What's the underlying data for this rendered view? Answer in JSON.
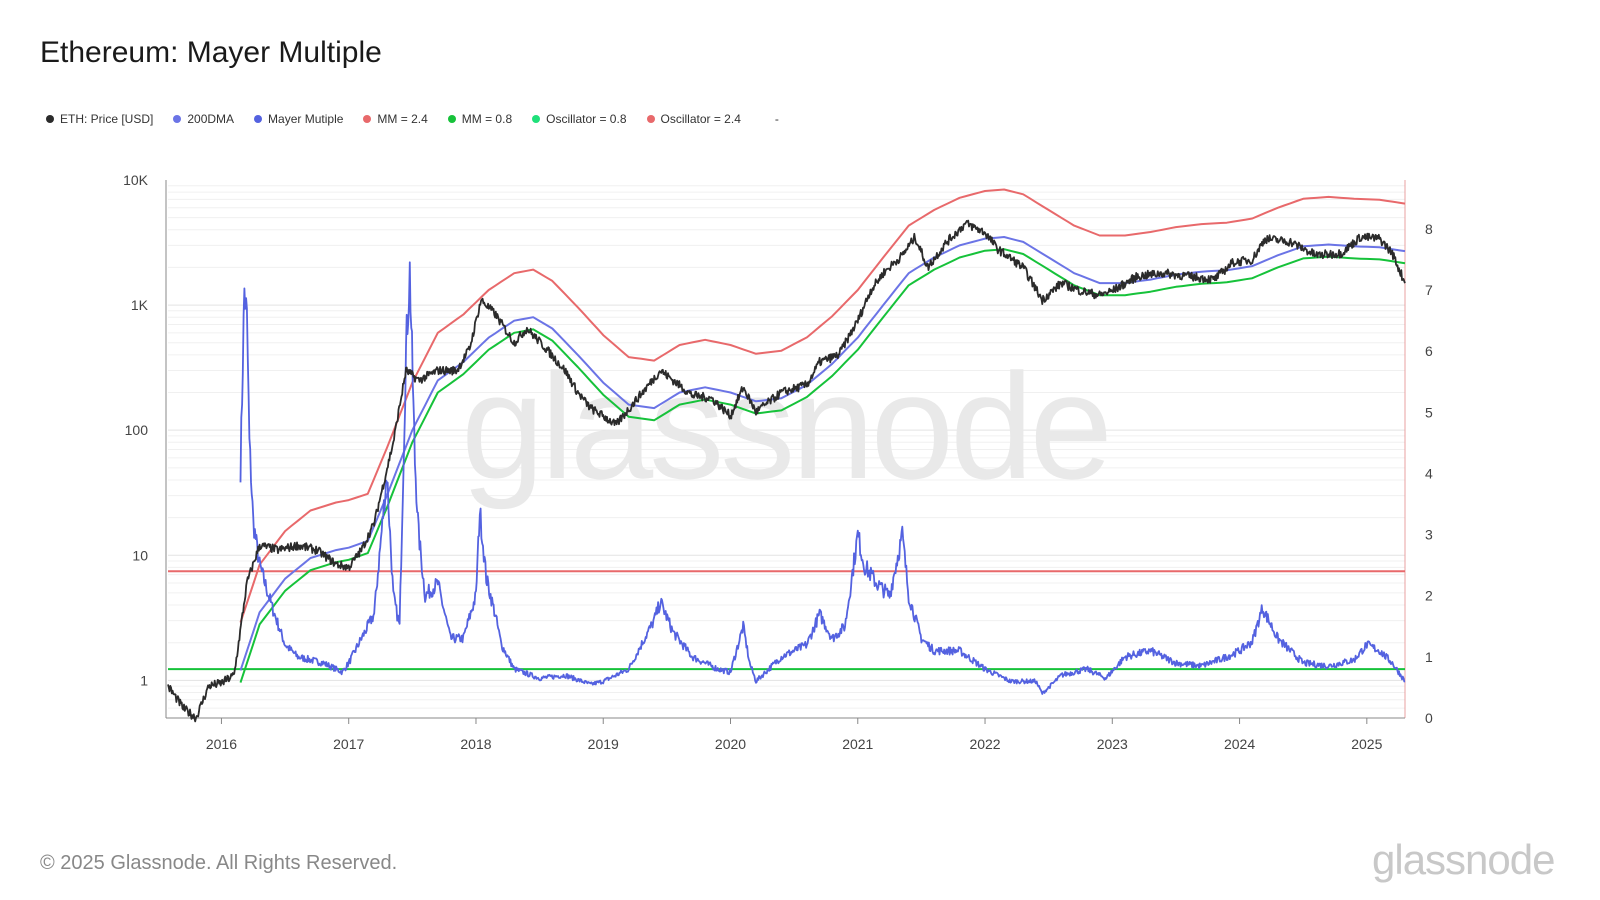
{
  "title": "Ethereum: Mayer Multiple",
  "footer": "© 2025 Glassnode. All Rights Reserved.",
  "brand": "glassnode",
  "watermark": "glassnode",
  "legend": [
    {
      "label": "ETH: Price [USD]",
      "color": "#2b2b2b"
    },
    {
      "label": "200DMA",
      "color": "#6b74e6"
    },
    {
      "label": "Mayer Mutiple",
      "color": "#5462e0"
    },
    {
      "label": "MM = 2.4",
      "color": "#e8696b"
    },
    {
      "label": "MM = 0.8",
      "color": "#16c23a"
    },
    {
      "label": "Oscillator = 0.8",
      "color": "#1fe07a"
    },
    {
      "label": "Oscillator = 2.4",
      "color": "#e8696b"
    },
    {
      "label": "-",
      "color": ""
    }
  ],
  "chart_data": {
    "type": "line",
    "y_left": {
      "scale": "log",
      "range": [
        0.5,
        10000
      ],
      "ticks": [
        "10K",
        "1K",
        "100",
        "10",
        "1"
      ],
      "tick_values": [
        10000,
        1000,
        100,
        10,
        1
      ]
    },
    "y_right": {
      "scale": "linear",
      "range": [
        0,
        8.8
      ],
      "ticks": [
        "8",
        "7",
        "6",
        "5",
        "4",
        "3",
        "2",
        "1",
        "0"
      ],
      "tick_values": [
        8,
        7,
        6,
        5,
        4,
        3,
        2,
        1,
        0
      ]
    },
    "x_ticks": [
      "2016",
      "2017",
      "2018",
      "2019",
      "2020",
      "2021",
      "2022",
      "2023",
      "2024",
      "2025"
    ],
    "x_range": [
      2015.58,
      2025.3
    ],
    "horizontal_lines": [
      {
        "name": "Oscillator = 2.4",
        "value": 2.4,
        "axis": "right",
        "color": "#e8696b"
      },
      {
        "name": "Oscillator = 0.8",
        "value": 0.8,
        "axis": "right",
        "color": "#16c23a"
      }
    ],
    "series": [
      {
        "name": "ETH: Price [USD]",
        "axis": "left",
        "color": "#2b2b2b",
        "x": [
          2015.58,
          2015.7,
          2015.8,
          2015.9,
          2016.0,
          2016.1,
          2016.2,
          2016.3,
          2016.45,
          2016.6,
          2016.75,
          2016.9,
          2017.0,
          2017.1,
          2017.2,
          2017.35,
          2017.45,
          2017.55,
          2017.7,
          2017.85,
          2017.95,
          2018.04,
          2018.15,
          2018.3,
          2018.4,
          2018.55,
          2018.7,
          2018.8,
          2018.9,
          2019.0,
          2019.1,
          2019.25,
          2019.45,
          2019.55,
          2019.7,
          2019.85,
          2020.0,
          2020.1,
          2020.2,
          2020.4,
          2020.6,
          2020.7,
          2020.85,
          2021.0,
          2021.1,
          2021.2,
          2021.35,
          2021.45,
          2021.55,
          2021.7,
          2021.85,
          2022.0,
          2022.1,
          2022.3,
          2022.45,
          2022.6,
          2022.75,
          2022.9,
          2023.0,
          2023.2,
          2023.4,
          2023.6,
          2023.8,
          2023.95,
          2024.1,
          2024.2,
          2024.4,
          2024.6,
          2024.8,
          2024.95,
          2025.1,
          2025.2,
          2025.3
        ],
        "y": [
          0.9,
          0.6,
          0.5,
          0.9,
          0.95,
          1.1,
          6,
          12,
          11,
          12,
          11,
          8.5,
          8,
          11,
          18,
          80,
          300,
          250,
          300,
          300,
          450,
          1100,
          850,
          500,
          650,
          450,
          300,
          200,
          150,
          130,
          110,
          170,
          300,
          250,
          190,
          180,
          130,
          220,
          140,
          200,
          230,
          350,
          400,
          750,
          1300,
          1800,
          2500,
          3500,
          2000,
          3200,
          4500,
          3800,
          2800,
          2000,
          1100,
          1500,
          1300,
          1200,
          1300,
          1700,
          1800,
          1700,
          1600,
          2200,
          2300,
          3400,
          3200,
          2500,
          2600,
          3500,
          3400,
          2600,
          1500
        ]
      },
      {
        "name": "200DMA",
        "axis": "left",
        "color": "#6b74e6",
        "x": [
          2016.15,
          2016.3,
          2016.5,
          2016.7,
          2016.9,
          2017.0,
          2017.15,
          2017.3,
          2017.5,
          2017.7,
          2017.9,
          2018.1,
          2018.3,
          2018.45,
          2018.6,
          2018.8,
          2019.0,
          2019.2,
          2019.4,
          2019.6,
          2019.8,
          2020.0,
          2020.2,
          2020.4,
          2020.6,
          2020.8,
          2021.0,
          2021.2,
          2021.4,
          2021.6,
          2021.8,
          2022.0,
          2022.15,
          2022.3,
          2022.5,
          2022.7,
          2022.9,
          2023.1,
          2023.3,
          2023.5,
          2023.7,
          2023.9,
          2024.1,
          2024.3,
          2024.5,
          2024.7,
          2024.9,
          2025.1,
          2025.3
        ],
        "y": [
          1.2,
          3.5,
          6.5,
          9.5,
          11,
          11.5,
          13,
          30,
          100,
          250,
          350,
          550,
          750,
          800,
          650,
          400,
          240,
          160,
          150,
          200,
          220,
          200,
          170,
          180,
          230,
          340,
          550,
          1000,
          1800,
          2400,
          3000,
          3400,
          3500,
          3200,
          2400,
          1800,
          1500,
          1500,
          1600,
          1750,
          1850,
          1900,
          2050,
          2500,
          2950,
          3050,
          2950,
          2900,
          2700
        ]
      },
      {
        "name": "MM = 2.4",
        "axis": "left",
        "color": "#e8696b",
        "x": [
          2016.15,
          2016.3,
          2016.5,
          2016.7,
          2016.9,
          2017.0,
          2017.15,
          2017.3,
          2017.5,
          2017.7,
          2017.9,
          2018.1,
          2018.3,
          2018.45,
          2018.6,
          2018.8,
          2019.0,
          2019.2,
          2019.4,
          2019.6,
          2019.8,
          2020.0,
          2020.2,
          2020.4,
          2020.6,
          2020.8,
          2021.0,
          2021.2,
          2021.4,
          2021.6,
          2021.8,
          2022.0,
          2022.15,
          2022.3,
          2022.5,
          2022.7,
          2022.9,
          2023.1,
          2023.3,
          2023.5,
          2023.7,
          2023.9,
          2024.1,
          2024.3,
          2024.5,
          2024.7,
          2024.9,
          2025.1,
          2025.3
        ],
        "y": [
          2.9,
          8.4,
          15.6,
          22.8,
          26.4,
          27.6,
          31,
          72,
          240,
          600,
          840,
          1320,
          1800,
          1920,
          1560,
          960,
          576,
          384,
          360,
          480,
          528,
          480,
          408,
          432,
          552,
          816,
          1320,
          2400,
          4320,
          5760,
          7200,
          8160,
          8400,
          7680,
          5760,
          4320,
          3600,
          3600,
          3840,
          4200,
          4440,
          4560,
          4920,
          6000,
          7080,
          7320,
          7080,
          6960,
          6480
        ]
      },
      {
        "name": "MM = 0.8",
        "axis": "left",
        "color": "#16c23a",
        "x": [
          2016.15,
          2016.3,
          2016.5,
          2016.7,
          2016.9,
          2017.0,
          2017.15,
          2017.3,
          2017.5,
          2017.7,
          2017.9,
          2018.1,
          2018.3,
          2018.45,
          2018.6,
          2018.8,
          2019.0,
          2019.2,
          2019.4,
          2019.6,
          2019.8,
          2020.0,
          2020.2,
          2020.4,
          2020.6,
          2020.8,
          2021.0,
          2021.2,
          2021.4,
          2021.6,
          2021.8,
          2022.0,
          2022.15,
          2022.3,
          2022.5,
          2022.7,
          2022.9,
          2023.1,
          2023.3,
          2023.5,
          2023.7,
          2023.9,
          2024.1,
          2024.3,
          2024.5,
          2024.7,
          2024.9,
          2025.1,
          2025.3
        ],
        "y": [
          0.96,
          2.8,
          5.2,
          7.6,
          8.8,
          9.2,
          10.4,
          24,
          80,
          200,
          280,
          440,
          600,
          640,
          520,
          320,
          192,
          128,
          120,
          160,
          176,
          160,
          136,
          144,
          184,
          272,
          440,
          800,
          1440,
          1920,
          2400,
          2720,
          2800,
          2560,
          1920,
          1440,
          1200,
          1200,
          1280,
          1400,
          1480,
          1520,
          1640,
          2000,
          2360,
          2440,
          2360,
          2320,
          2160
        ]
      },
      {
        "name": "Mayer Mutiple",
        "axis": "right",
        "color": "#5462e0",
        "x": [
          2016.15,
          2016.18,
          2016.2,
          2016.22,
          2016.25,
          2016.3,
          2016.4,
          2016.5,
          2016.6,
          2016.8,
          2016.95,
          2017.0,
          2017.1,
          2017.2,
          2017.3,
          2017.35,
          2017.4,
          2017.45,
          2017.48,
          2017.52,
          2017.55,
          2017.6,
          2017.7,
          2017.8,
          2017.9,
          2018.0,
          2018.03,
          2018.08,
          2018.15,
          2018.2,
          2018.3,
          2018.5,
          2018.7,
          2018.9,
          2019.0,
          2019.2,
          2019.4,
          2019.45,
          2019.55,
          2019.7,
          2019.9,
          2020.0,
          2020.1,
          2020.15,
          2020.2,
          2020.4,
          2020.6,
          2020.7,
          2020.8,
          2020.9,
          2021.0,
          2021.05,
          2021.15,
          2021.25,
          2021.35,
          2021.4,
          2021.5,
          2021.6,
          2021.8,
          2022.0,
          2022.2,
          2022.4,
          2022.45,
          2022.6,
          2022.8,
          2022.95,
          2023.1,
          2023.3,
          2023.5,
          2023.7,
          2023.9,
          2024.0,
          2024.1,
          2024.18,
          2024.3,
          2024.5,
          2024.7,
          2024.9,
          2025.0,
          2025.1,
          2025.2,
          2025.3
        ],
        "y": [
          4.1,
          7.0,
          6.5,
          4.5,
          3.2,
          2.5,
          1.8,
          1.2,
          1.0,
          0.9,
          0.75,
          0.9,
          1.3,
          1.7,
          4.0,
          2.0,
          1.5,
          6.0,
          7.3,
          4.2,
          3.0,
          2.0,
          2.2,
          1.3,
          1.3,
          2.0,
          3.4,
          2.3,
          1.7,
          1.2,
          0.8,
          0.65,
          0.7,
          0.55,
          0.6,
          0.8,
          1.6,
          1.9,
          1.4,
          1.0,
          0.8,
          0.75,
          1.5,
          0.9,
          0.6,
          1.0,
          1.2,
          1.7,
          1.3,
          1.5,
          3.0,
          2.5,
          2.2,
          2.0,
          3.0,
          2.0,
          1.3,
          1.1,
          1.1,
          0.8,
          0.6,
          0.6,
          0.4,
          0.7,
          0.8,
          0.65,
          1.0,
          1.1,
          0.9,
          0.85,
          1.0,
          1.1,
          1.25,
          1.8,
          1.3,
          0.9,
          0.85,
          0.95,
          1.2,
          1.1,
          0.9,
          0.6
        ]
      }
    ]
  }
}
